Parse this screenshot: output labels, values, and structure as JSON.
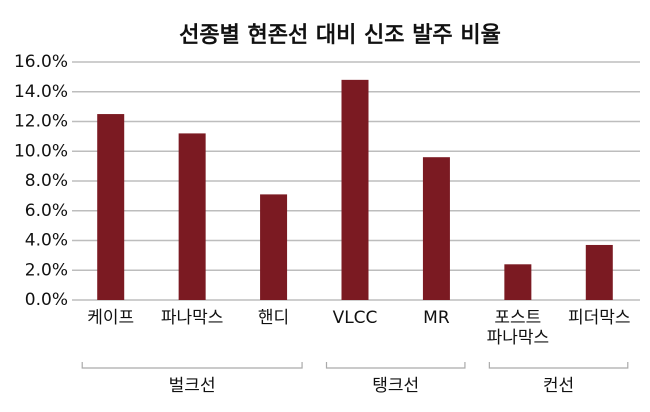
{
  "chart_data": {
    "type": "bar",
    "title": "선종별 현존선 대비 신조 발주 비율",
    "categories": [
      "케이프",
      "파나막스",
      "핸디",
      "VLCC",
      "MR",
      "포스트\n파나막스",
      "피더막스"
    ],
    "values": [
      12.5,
      11.2,
      7.1,
      14.8,
      9.6,
      2.4,
      3.7
    ],
    "color": "#7b1a22",
    "ylim": [
      0,
      16
    ],
    "yticks": [
      {
        "value": 0,
        "label": "0.0%"
      },
      {
        "value": 2,
        "label": "2.0%"
      },
      {
        "value": 4,
        "label": "4.0%"
      },
      {
        "value": 6,
        "label": "6.0%"
      },
      {
        "value": 8,
        "label": "8.0%"
      },
      {
        "value": 10,
        "label": "10.0%"
      },
      {
        "value": 12,
        "label": "12.0%"
      },
      {
        "value": 14,
        "label": "14.0%"
      },
      {
        "value": 16,
        "label": "16.0%"
      }
    ],
    "grid": true,
    "groups": [
      {
        "name": "벌크선",
        "categories": [
          "케이프",
          "파나막스",
          "핸디"
        ]
      },
      {
        "name": "탱크선",
        "categories": [
          "VLCC",
          "MR"
        ]
      },
      {
        "name": "컨선",
        "categories": [
          "포스트\n파나막스",
          "피더막스"
        ]
      }
    ]
  }
}
